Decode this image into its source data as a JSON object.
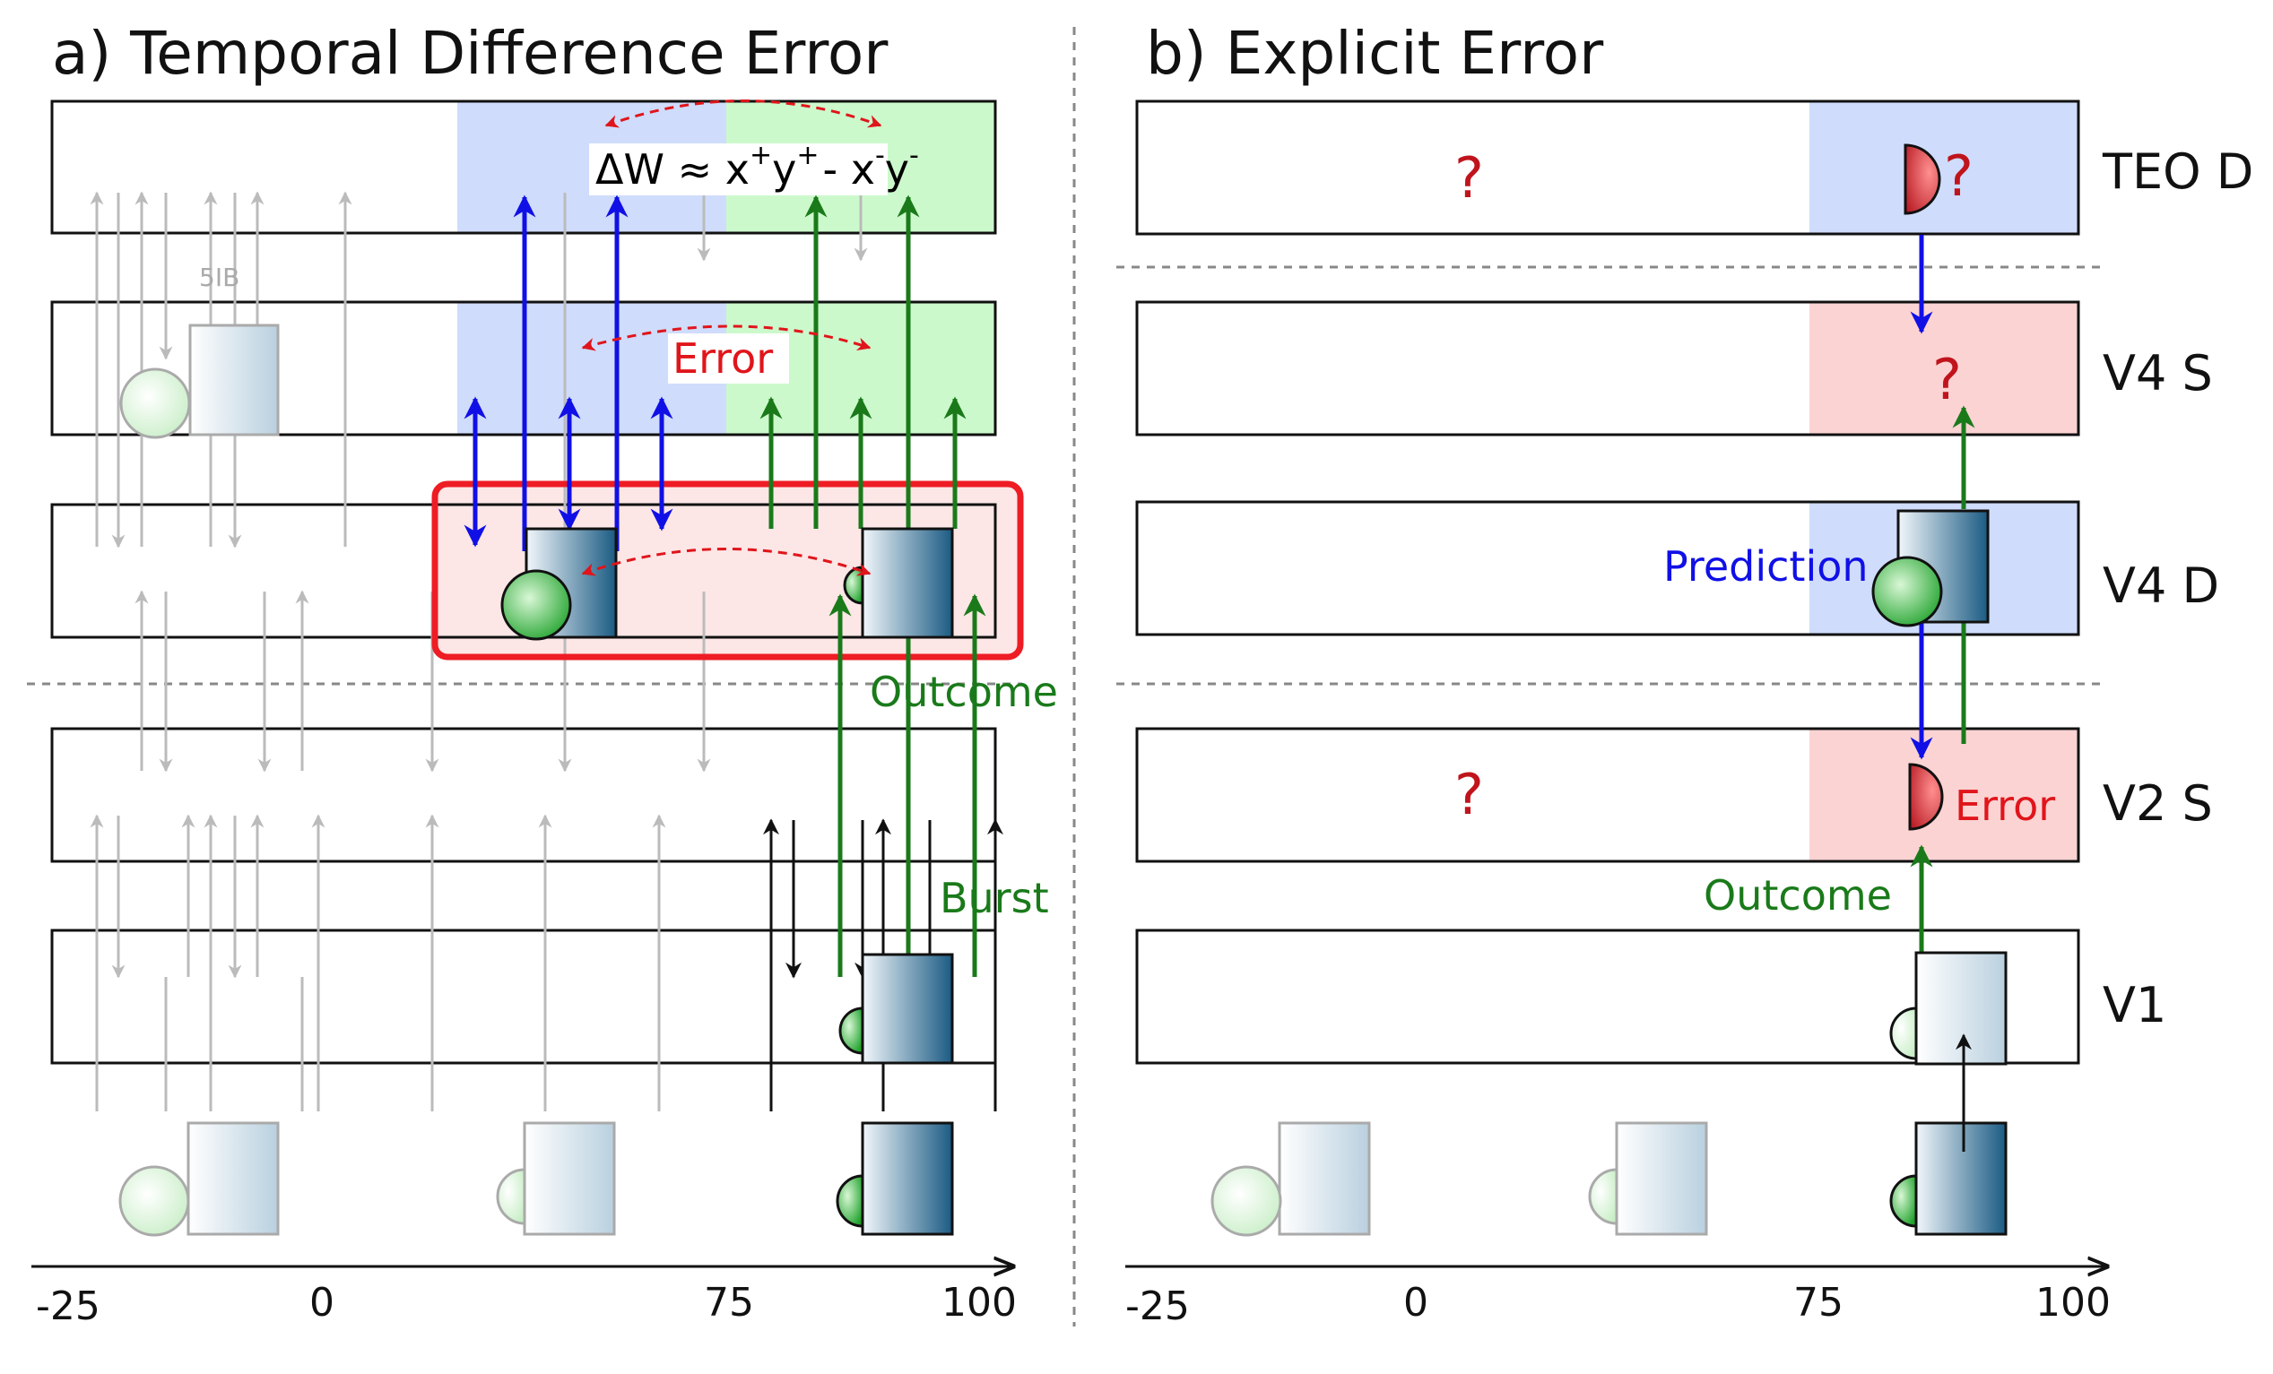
{
  "panel_a": {
    "title": "a) Temporal Difference Error",
    "formula": {
      "prefix": "ΔW ≈ x",
      "sup1": "+",
      "mid1": "y",
      "sup2": "+",
      "minus": "- x",
      "sup3": "-",
      "mid2": "y",
      "sup4": "-"
    },
    "error_label": "Error",
    "outcome_label": "Outcome",
    "burst_label": "Burst",
    "faint_label": "5IB",
    "axis_ticks": [
      "-25",
      "0",
      "75",
      "100"
    ]
  },
  "panel_b": {
    "title": "b) Explicit Error",
    "layers": [
      "TEO D",
      "V4 S",
      "V4 D",
      "V2 S",
      "V1"
    ],
    "question_mark": "?",
    "prediction_label": "Prediction",
    "error_label": "Error",
    "outcome_label": "Outcome",
    "axis_ticks": [
      "-25",
      "0",
      "75",
      "100"
    ]
  },
  "colors": {
    "blue_region": "#cfdcfb",
    "green_region": "#ccf9cc",
    "pink_region": "#fbd3d3",
    "red_frame": "#ee1c24",
    "blue_arrow": "#1010e6",
    "green_arrow": "#1a7a1a",
    "error_red": "#e0151b",
    "gray_arrow": "#bbbbbb"
  }
}
